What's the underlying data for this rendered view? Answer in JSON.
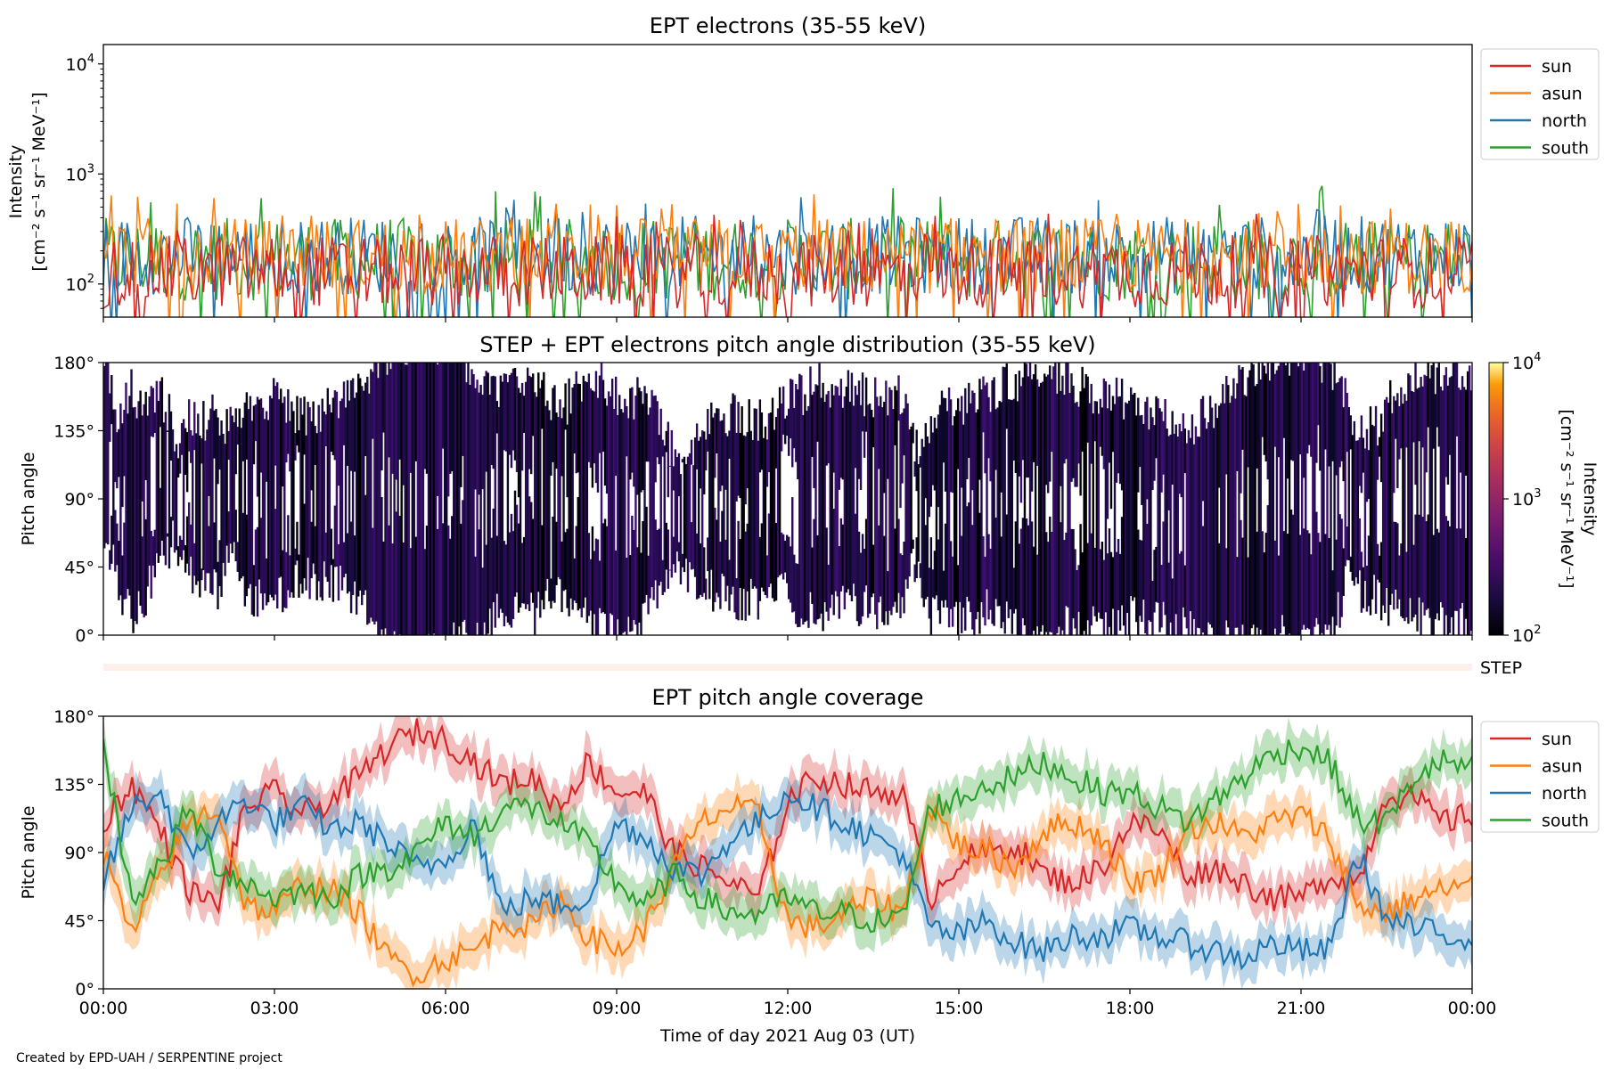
{
  "credit": "Created by EPD-UAH / SERPENTINE project",
  "xlabel": "Time of day 2021 Aug 03 (UT)",
  "x_ticks": [
    "00:00",
    "03:00",
    "06:00",
    "09:00",
    "12:00",
    "15:00",
    "18:00",
    "21:00",
    "00:00"
  ],
  "colors": {
    "sun": "#d62728",
    "asun": "#ff7f0e",
    "north": "#1f77b4",
    "south": "#2ca02c"
  },
  "chart_data": [
    {
      "type": "line",
      "title": "EPT electrons (35-55 keV)",
      "ylabel": [
        "Intensity",
        "[cm⁻² s⁻¹ sr⁻¹ MeV⁻¹]"
      ],
      "yscale": "log",
      "ylim": [
        50,
        15000
      ],
      "y_ticks": [
        {
          "base": "10",
          "exp": "2",
          "v": 100
        },
        {
          "base": "10",
          "exp": "3",
          "v": 1000
        },
        {
          "base": "10",
          "exp": "4",
          "v": 10000
        }
      ],
      "x_unit": "hours",
      "xlim": [
        0,
        24
      ],
      "legend_position": "outside-right-top",
      "series": [
        {
          "name": "sun",
          "color": "#d62728",
          "typical_range": [
            60,
            280
          ],
          "peak": 450
        },
        {
          "name": "asun",
          "color": "#ff7f0e",
          "typical_range": [
            80,
            400
          ],
          "peak": 700
        },
        {
          "name": "north",
          "color": "#1f77b4",
          "typical_range": [
            80,
            420
          ],
          "peak": 650
        },
        {
          "name": "south",
          "color": "#2ca02c",
          "typical_range": [
            70,
            400
          ],
          "peak": 800
        }
      ]
    },
    {
      "type": "heatmap",
      "title": "STEP + EPT electrons pitch angle distribution (35-55 keV)",
      "ylabel": "Pitch angle",
      "ylim": [
        0,
        180
      ],
      "y_ticks": [
        "0°",
        "45°",
        "90°",
        "135°",
        "180°"
      ],
      "colorbar": {
        "label": [
          "Intensity",
          "[cm⁻² s⁻¹ sr⁻¹ MeV⁻¹]"
        ],
        "scale": "log",
        "range": [
          100,
          10000
        ],
        "ticks": [
          {
            "base": "10",
            "exp": "2"
          },
          {
            "base": "10",
            "exp": "3"
          },
          {
            "base": "10",
            "exp": "4"
          }
        ],
        "colormap": "inferno"
      }
    },
    {
      "type": "bar",
      "label": "STEP",
      "coverage": "full",
      "color": "#fdf0ea"
    },
    {
      "type": "area",
      "title": "EPT pitch angle coverage",
      "ylabel": "Pitch angle",
      "ylim": [
        0,
        180
      ],
      "y_ticks": [
        "0°",
        "45°",
        "90°",
        "135°",
        "180°"
      ],
      "legend_position": "outside-right-top",
      "x": [
        0,
        0.5,
        1,
        1.5,
        2,
        2.5,
        3,
        3.5,
        4,
        4.5,
        5,
        5.5,
        6,
        6.5,
        7,
        7.5,
        8,
        8.5,
        9,
        9.5,
        10,
        10.5,
        11,
        11.5,
        12,
        12.5,
        13,
        13.5,
        14,
        14.5,
        15,
        15.5,
        16,
        16.5,
        17,
        17.5,
        18,
        18.5,
        19,
        19.5,
        20,
        20.5,
        21,
        21.5,
        22,
        22.5,
        23,
        23.5,
        24
      ],
      "series": [
        {
          "name": "sun",
          "color": "#d62728",
          "values": [
            110,
            135,
            105,
            65,
            55,
            120,
            130,
            115,
            125,
            140,
            160,
            170,
            165,
            150,
            135,
            140,
            120,
            150,
            130,
            130,
            90,
            80,
            70,
            60,
            125,
            140,
            135,
            130,
            130,
            60,
            85,
            90,
            95,
            75,
            70,
            80,
            110,
            105,
            75,
            80,
            70,
            60,
            60,
            75,
            70,
            130,
            125,
            110,
            115
          ]
        },
        {
          "name": "asun",
          "color": "#ff7f0e",
          "values": [
            90,
            35,
            75,
            110,
            120,
            55,
            50,
            70,
            65,
            50,
            20,
            10,
            20,
            25,
            45,
            40,
            60,
            35,
            25,
            40,
            80,
            110,
            120,
            115,
            45,
            40,
            50,
            60,
            50,
            120,
            95,
            90,
            80,
            105,
            110,
            100,
            70,
            75,
            105,
            110,
            100,
            110,
            115,
            100,
            55,
            50,
            60,
            65,
            70
          ]
        },
        {
          "name": "north",
          "color": "#1f77b4",
          "values": [
            70,
            120,
            130,
            85,
            110,
            125,
            110,
            120,
            105,
            110,
            95,
            80,
            85,
            110,
            50,
            60,
            55,
            60,
            110,
            100,
            80,
            75,
            100,
            110,
            130,
            120,
            110,
            100,
            90,
            40,
            35,
            45,
            30,
            25,
            35,
            35,
            40,
            35,
            30,
            25,
            20,
            30,
            25,
            25,
            90,
            45,
            40,
            35,
            35
          ]
        },
        {
          "name": "south",
          "color": "#2ca02c",
          "values": [
            160,
            60,
            80,
            120,
            80,
            70,
            60,
            65,
            60,
            75,
            80,
            90,
            110,
            100,
            120,
            120,
            110,
            95,
            70,
            55,
            75,
            60,
            50,
            50,
            60,
            50,
            50,
            45,
            45,
            120,
            125,
            135,
            140,
            150,
            140,
            130,
            130,
            120,
            110,
            125,
            140,
            155,
            160,
            150,
            110,
            110,
            140,
            150,
            145
          ]
        }
      ]
    }
  ]
}
